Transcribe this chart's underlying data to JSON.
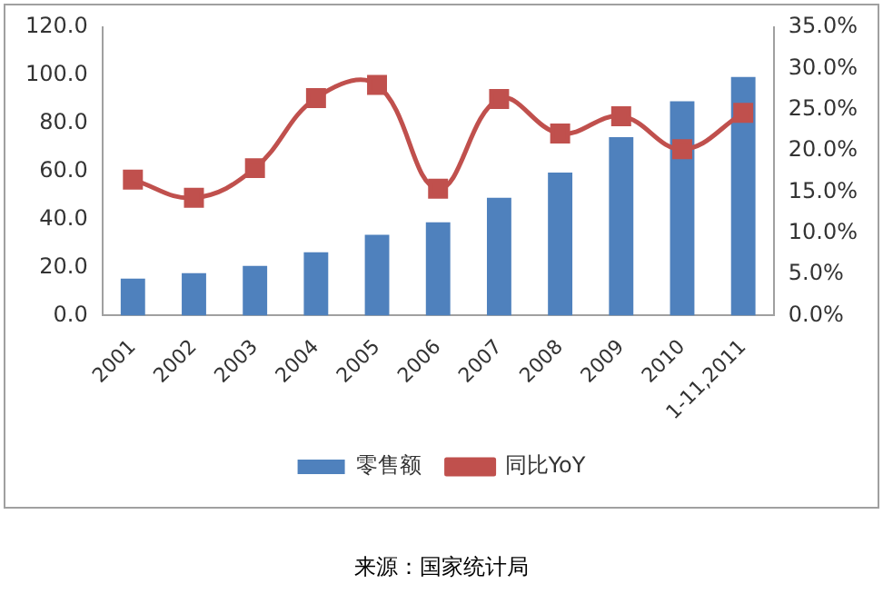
{
  "chart_data": {
    "type": "bar",
    "categories": [
      "2001",
      "2002",
      "2003",
      "2004",
      "2005",
      "2006",
      "2007",
      "2008",
      "2009",
      "2010",
      "1-11,2011"
    ],
    "series": [
      {
        "name": "零售额",
        "color": "#4f81bd",
        "values": [
          15.4,
          17.7,
          20.7,
          26.4,
          33.6,
          38.8,
          49.0,
          59.5,
          74.3,
          89.2,
          99.3
        ]
      },
      {
        "name": "同比YoY",
        "type": "line",
        "axis": "y2",
        "color": "#c0504d",
        "marker": "square",
        "values": [
          16.5,
          14.3,
          17.9,
          26.4,
          28.0,
          15.4,
          26.3,
          22.1,
          24.2,
          20.2,
          24.6
        ]
      }
    ],
    "ylim": [
      0,
      120
    ],
    "yticks": [
      {
        "value": 0,
        "label": "0.0"
      },
      {
        "value": 20,
        "label": "20.0"
      },
      {
        "value": 40,
        "label": "40.0"
      },
      {
        "value": 60,
        "label": "60.0"
      },
      {
        "value": 80,
        "label": "80.0"
      },
      {
        "value": 100,
        "label": "100.0"
      },
      {
        "value": 120,
        "label": "120.0"
      }
    ],
    "y2lim": [
      0,
      35
    ],
    "y2ticks": [
      {
        "value": 0,
        "label": "0.0%"
      },
      {
        "value": 5,
        "label": "5.0%"
      },
      {
        "value": 10,
        "label": "10.0%"
      },
      {
        "value": 15,
        "label": "15.0%"
      },
      {
        "value": 20,
        "label": "20.0%"
      },
      {
        "value": 25,
        "label": "25.0%"
      },
      {
        "value": 30,
        "label": "30.0%"
      },
      {
        "value": 35,
        "label": "35.0%"
      }
    ],
    "grid": false,
    "legend": "bottom",
    "annotations": [
      "来源：国家统计局"
    ]
  }
}
